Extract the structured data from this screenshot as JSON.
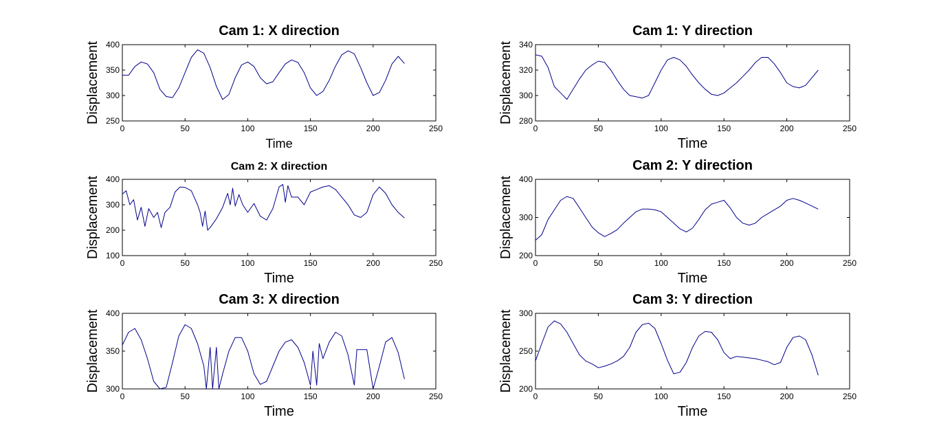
{
  "figure_background": "#ffffff",
  "line_color": "#00008b",
  "chart_data": [
    {
      "type": "line",
      "title": "Cam 1: X direction",
      "xlabel": "Time",
      "ylabel": "Displacement",
      "xlim": [
        0,
        250
      ],
      "ylim": [
        250,
        400
      ],
      "xticks": [
        0,
        50,
        100,
        150,
        200,
        250
      ],
      "yticks": [
        250,
        300,
        350,
        400
      ],
      "grid": false,
      "series": [
        {
          "x": [
            0,
            5,
            10,
            15,
            20,
            25,
            30,
            35,
            40,
            45,
            50,
            55,
            60,
            65,
            70,
            75,
            80,
            85,
            90,
            95,
            100,
            105,
            110,
            115,
            120,
            125,
            130,
            135,
            140,
            145,
            150,
            155,
            160,
            165,
            170,
            175,
            180,
            185,
            190,
            195,
            200,
            205,
            210,
            215,
            220,
            225
          ],
          "values": [
            340,
            340,
            357,
            366,
            362,
            345,
            312,
            298,
            296,
            315,
            345,
            375,
            390,
            383,
            355,
            318,
            292,
            302,
            335,
            360,
            366,
            357,
            335,
            323,
            327,
            345,
            362,
            370,
            365,
            345,
            315,
            300,
            308,
            330,
            358,
            380,
            388,
            382,
            355,
            325,
            300,
            306,
            330,
            362,
            377,
            363
          ]
        }
      ]
    },
    {
      "type": "line",
      "title": "Cam 1: Y direction",
      "xlabel": "Time",
      "ylabel": "Displacement",
      "xlim": [
        0,
        250
      ],
      "ylim": [
        280,
        340
      ],
      "xticks": [
        0,
        50,
        100,
        150,
        200,
        250
      ],
      "yticks": [
        280,
        300,
        320,
        340
      ],
      "grid": false,
      "series": [
        {
          "x": [
            0,
            5,
            10,
            15,
            20,
            25,
            30,
            35,
            40,
            45,
            50,
            55,
            60,
            65,
            70,
            75,
            80,
            85,
            90,
            95,
            100,
            105,
            110,
            115,
            120,
            125,
            130,
            135,
            140,
            145,
            150,
            155,
            160,
            165,
            170,
            175,
            180,
            185,
            190,
            195,
            200,
            205,
            210,
            215,
            220,
            225
          ],
          "values": [
            332,
            331,
            322,
            307,
            302,
            297,
            305,
            313,
            320,
            324,
            327,
            326,
            320,
            312,
            305,
            300,
            299,
            298,
            300,
            310,
            320,
            328,
            330,
            328,
            323,
            316,
            310,
            305,
            301,
            300,
            302,
            306,
            310,
            315,
            320,
            326,
            330,
            330,
            325,
            318,
            310,
            307,
            306,
            308,
            314,
            320
          ]
        }
      ]
    },
    {
      "type": "line",
      "title": "Cam 2: X direction",
      "xlabel": "Time",
      "ylabel": "Displacement",
      "xlim": [
        0,
        250
      ],
      "ylim": [
        100,
        400
      ],
      "xticks": [
        0,
        50,
        100,
        150,
        200,
        250
      ],
      "yticks": [
        100,
        200,
        300,
        400
      ],
      "grid": false,
      "series": [
        {
          "x": [
            0,
            3,
            6,
            9,
            12,
            15,
            18,
            21,
            25,
            28,
            31,
            34,
            38,
            42,
            46,
            50,
            55,
            60,
            62,
            64,
            66,
            68,
            70,
            75,
            80,
            84,
            86,
            88,
            90,
            93,
            96,
            100,
            105,
            110,
            115,
            120,
            125,
            128,
            130,
            132,
            135,
            140,
            145,
            150,
            155,
            160,
            165,
            170,
            175,
            180,
            185,
            190,
            195,
            200,
            205,
            210,
            215,
            220,
            225
          ],
          "values": [
            342,
            355,
            300,
            320,
            240,
            290,
            215,
            285,
            250,
            270,
            210,
            270,
            290,
            350,
            370,
            368,
            355,
            300,
            270,
            215,
            275,
            200,
            210,
            245,
            290,
            345,
            300,
            365,
            295,
            340,
            300,
            270,
            305,
            255,
            240,
            285,
            370,
            380,
            310,
            375,
            330,
            330,
            300,
            350,
            360,
            370,
            375,
            360,
            330,
            300,
            260,
            250,
            270,
            340,
            370,
            345,
            300,
            270,
            248
          ]
        }
      ]
    },
    {
      "type": "line",
      "title": "Cam 2: Y direction",
      "xlabel": "Time",
      "ylabel": "Displacement",
      "xlim": [
        0,
        250
      ],
      "ylim": [
        200,
        400
      ],
      "xticks": [
        0,
        50,
        100,
        150,
        200,
        250
      ],
      "yticks": [
        200,
        300,
        400
      ],
      "grid": false,
      "series": [
        {
          "x": [
            0,
            5,
            10,
            15,
            20,
            25,
            30,
            35,
            40,
            45,
            50,
            55,
            60,
            65,
            70,
            75,
            80,
            85,
            90,
            95,
            100,
            105,
            110,
            115,
            120,
            125,
            130,
            135,
            140,
            145,
            150,
            155,
            160,
            165,
            170,
            175,
            180,
            185,
            190,
            195,
            200,
            205,
            210,
            215,
            220,
            225
          ],
          "values": [
            240,
            255,
            295,
            320,
            345,
            355,
            350,
            325,
            300,
            275,
            260,
            250,
            258,
            268,
            285,
            300,
            315,
            322,
            322,
            320,
            315,
            300,
            285,
            270,
            262,
            272,
            295,
            320,
            335,
            340,
            345,
            325,
            300,
            285,
            280,
            285,
            300,
            310,
            320,
            330,
            345,
            350,
            345,
            338,
            330,
            322
          ]
        }
      ]
    },
    {
      "type": "line",
      "title": "Cam 3: X direction",
      "xlabel": "Time",
      "ylabel": "Displacement",
      "xlim": [
        0,
        250
      ],
      "ylim": [
        300,
        400
      ],
      "xticks": [
        0,
        50,
        100,
        150,
        200,
        250
      ],
      "yticks": [
        300,
        350,
        400
      ],
      "grid": false,
      "series": [
        {
          "x": [
            0,
            5,
            10,
            15,
            20,
            25,
            30,
            35,
            40,
            45,
            50,
            55,
            60,
            65,
            67,
            70,
            72,
            75,
            77,
            80,
            85,
            90,
            95,
            100,
            105,
            110,
            115,
            120,
            125,
            130,
            135,
            140,
            145,
            150,
            152,
            155,
            157,
            160,
            165,
            170,
            175,
            180,
            185,
            187,
            190,
            195,
            200,
            205,
            210,
            215,
            220,
            225
          ],
          "values": [
            358,
            375,
            380,
            365,
            340,
            310,
            300,
            302,
            335,
            370,
            385,
            380,
            360,
            330,
            300,
            355,
            300,
            355,
            300,
            320,
            350,
            368,
            368,
            350,
            320,
            306,
            310,
            330,
            350,
            362,
            365,
            355,
            335,
            305,
            350,
            305,
            360,
            340,
            362,
            375,
            370,
            345,
            305,
            352,
            352,
            352,
            300,
            330,
            362,
            368,
            348,
            313
          ]
        }
      ]
    },
    {
      "type": "line",
      "title": "Cam 3: Y direction",
      "xlabel": "Time",
      "ylabel": "Displacement",
      "xlim": [
        0,
        250
      ],
      "ylim": [
        200,
        300
      ],
      "xticks": [
        0,
        50,
        100,
        150,
        200,
        250
      ],
      "yticks": [
        200,
        250,
        300
      ],
      "grid": false,
      "series": [
        {
          "x": [
            0,
            5,
            10,
            15,
            20,
            25,
            30,
            35,
            40,
            45,
            50,
            55,
            60,
            65,
            70,
            75,
            80,
            85,
            90,
            95,
            100,
            105,
            110,
            115,
            120,
            125,
            130,
            135,
            140,
            145,
            150,
            155,
            160,
            165,
            170,
            175,
            180,
            185,
            190,
            195,
            200,
            205,
            210,
            215,
            220,
            225
          ],
          "values": [
            237,
            260,
            282,
            290,
            286,
            275,
            260,
            245,
            237,
            233,
            228,
            230,
            233,
            237,
            243,
            255,
            275,
            285,
            287,
            280,
            260,
            238,
            220,
            222,
            235,
            255,
            270,
            276,
            275,
            265,
            248,
            240,
            243,
            242,
            241,
            240,
            238,
            236,
            232,
            235,
            255,
            268,
            270,
            265,
            245,
            218
          ]
        }
      ]
    }
  ]
}
